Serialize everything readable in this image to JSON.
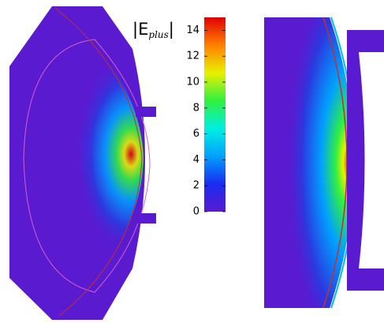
{
  "chart_data": {
    "type": "colorbar",
    "title_parts": [
      "|E",
      "plus",
      "|"
    ],
    "ylim": [
      0,
      15
    ],
    "yticks": [
      0,
      2,
      4,
      6,
      8,
      10,
      12,
      14
    ],
    "colormap": [
      "#5a1ad0",
      "#1a2cf0",
      "#00a0ff",
      "#00f0e0",
      "#30f040",
      "#e8f000",
      "#ff8000",
      "#e00000"
    ]
  }
}
